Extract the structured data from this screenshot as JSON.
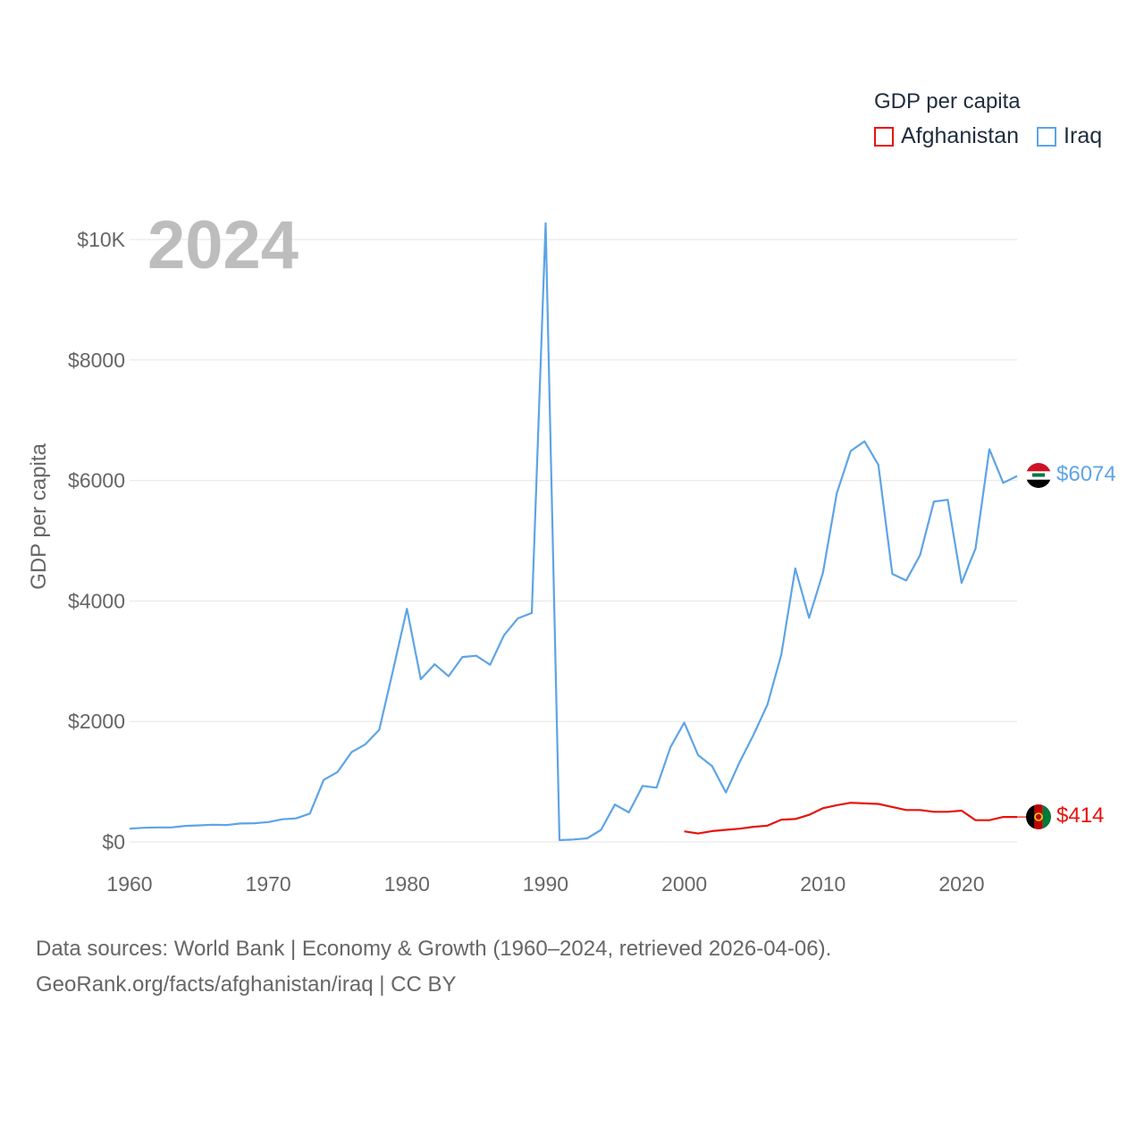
{
  "year_label": "2024",
  "legend": {
    "title": "GDP per capita",
    "items": [
      {
        "label": "Afghanistan",
        "color": "#e8120c"
      },
      {
        "label": "Iraq",
        "color": "#5da4e6"
      }
    ]
  },
  "source": {
    "line1": "Data sources: World Bank | Economy & Growth (1960–2024, retrieved 2026-04-06).",
    "line2": "GeoRank.org/facts/afghanistan/iraq | CC BY"
  },
  "chart_data": {
    "type": "line",
    "title": "GDP per capita",
    "xlabel": "",
    "ylabel": "GDP per capita",
    "xlim": [
      1960,
      2024
    ],
    "ylim": [
      0,
      10000
    ],
    "x_ticks": [
      1960,
      1970,
      1980,
      1990,
      2000,
      2010,
      2020
    ],
    "y_ticks": [
      {
        "value": 0,
        "label": "$0"
      },
      {
        "value": 2000,
        "label": "$2000"
      },
      {
        "value": 4000,
        "label": "$4000"
      },
      {
        "value": 6000,
        "label": "$6000"
      },
      {
        "value": 8000,
        "label": "$8000"
      },
      {
        "value": 10000,
        "label": "$10K"
      }
    ],
    "grid": true,
    "legend_position": "top-right",
    "series": [
      {
        "name": "Iraq",
        "color": "#5da4e6",
        "end_label": "$6074",
        "x": [
          1960,
          1961,
          1962,
          1963,
          1964,
          1965,
          1966,
          1967,
          1968,
          1969,
          1970,
          1971,
          1972,
          1973,
          1974,
          1975,
          1976,
          1977,
          1978,
          1979,
          1980,
          1981,
          1982,
          1983,
          1984,
          1985,
          1986,
          1987,
          1988,
          1989,
          1990,
          1991,
          1992,
          1993,
          1994,
          1995,
          1996,
          1997,
          1998,
          1999,
          2000,
          2001,
          2002,
          2003,
          2004,
          2005,
          2006,
          2007,
          2008,
          2009,
          2010,
          2011,
          2012,
          2013,
          2014,
          2015,
          2016,
          2017,
          2018,
          2019,
          2020,
          2021,
          2022,
          2023,
          2024
        ],
        "values": [
          220,
          235,
          240,
          240,
          265,
          275,
          285,
          280,
          305,
          310,
          330,
          375,
          390,
          470,
          1030,
          1160,
          1490,
          1620,
          1860,
          2850,
          3870,
          2700,
          2950,
          2750,
          3070,
          3090,
          2940,
          3430,
          3710,
          3800,
          10270,
          30,
          40,
          60,
          200,
          620,
          490,
          930,
          900,
          1570,
          1980,
          1440,
          1260,
          820,
          1330,
          1780,
          2280,
          3110,
          4540,
          3720,
          4470,
          5790,
          6490,
          6650,
          6260,
          4450,
          4340,
          4760,
          5650,
          5680,
          4300,
          4870,
          6520,
          5960,
          6074
        ]
      },
      {
        "name": "Afghanistan",
        "color": "#e8120c",
        "end_label": "$414",
        "x": [
          2000,
          2001,
          2002,
          2003,
          2004,
          2005,
          2006,
          2007,
          2008,
          2009,
          2010,
          2011,
          2012,
          2013,
          2014,
          2015,
          2016,
          2017,
          2018,
          2019,
          2020,
          2021,
          2022,
          2023,
          2024
        ],
        "values": [
          175,
          140,
          180,
          200,
          220,
          250,
          270,
          370,
          380,
          450,
          560,
          610,
          650,
          640,
          630,
          580,
          530,
          530,
          500,
          500,
          520,
          360,
          360,
          414,
          414
        ]
      }
    ]
  }
}
